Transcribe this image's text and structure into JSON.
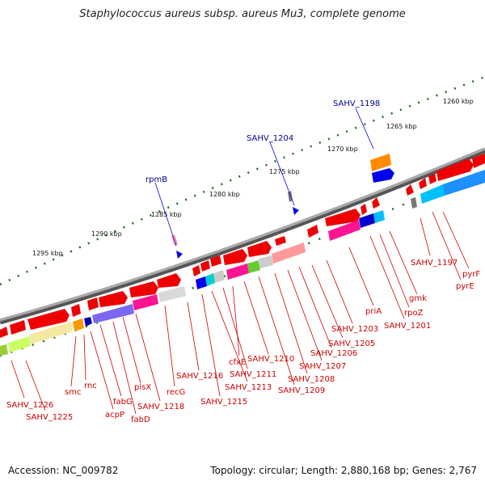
{
  "title": "Staphylococcus aureus subsp. aureus Mu3, complete genome",
  "footer": {
    "accession": "Accession: NC_009782",
    "summary": "Topology: circular; Length: 2,880,168 bp; Genes: 2,767"
  },
  "colors": {
    "gene_red": "#ee0000",
    "label_red": "#cc0000",
    "label_blue": "#00008b",
    "tick_green": "#1a6e1a"
  },
  "kbp_labels": [
    "1260 kbp",
    "1265 kbp",
    "1270 kbp",
    "1275 kbp",
    "1280 kbp",
    "1285 kbp",
    "1290 kbp",
    "1295 kbp"
  ],
  "blue_labels": [
    "SAHV_1198",
    "SAHV_1204",
    "rpmB"
  ],
  "red_labels": [
    "SAHV_1197",
    "pyrF",
    "pyrE",
    "gmk",
    "rpoZ",
    "SAHV_1201",
    "priA",
    "SAHV_1203",
    "SAHV_1205",
    "SAHV_1206",
    "SAHV_1207",
    "SAHV_1208",
    "SAHV_1209",
    "SAHV_1210",
    "cfxE",
    "SAHV_1211",
    "SAHV_1213",
    "SAHV_1215",
    "SAHV_1216",
    "recG",
    "SAHV_1218",
    "plsX",
    "fabD",
    "fabG",
    "acpP",
    "rnc",
    "smc",
    "SAHV_1225",
    "SAHV_1226"
  ]
}
